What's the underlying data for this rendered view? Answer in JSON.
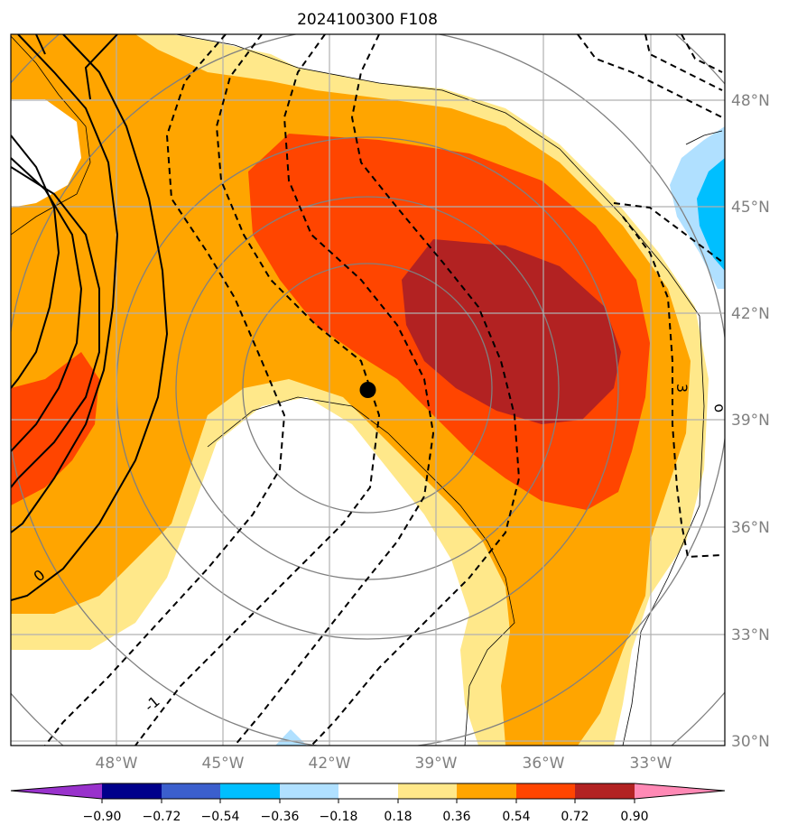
{
  "title": "2024100300 F108",
  "map": {
    "lon_range": [
      -51,
      -31
    ],
    "lat_range": [
      29.8,
      49.8
    ],
    "lon_ticks": [
      "48°W",
      "45°W",
      "42°W",
      "39°W",
      "36°W",
      "33°W"
    ],
    "lat_ticks": [
      "48°N",
      "45°N",
      "42°N",
      "39°N",
      "36°N",
      "33°N",
      "30°N"
    ],
    "grid": true,
    "storm_center_marker": {
      "lon": -41.0,
      "lat": 39.8
    }
  },
  "contour_labels": [
    {
      "text": "0",
      "style": "solid"
    },
    {
      "text": "-1",
      "style": "dashed"
    },
    {
      "text": "3",
      "style": "dashed"
    },
    {
      "text": "o",
      "style": "dashed"
    }
  ],
  "colorbar": {
    "tick_labels": [
      "−0.90",
      "−0.72",
      "−0.54",
      "−0.36",
      "−0.18",
      "0.18",
      "0.36",
      "0.54",
      "0.72",
      "0.90"
    ],
    "colors": [
      "#9932cc",
      "#00008b",
      "#3b5fcd",
      "#00bfff",
      "#b0e0ff",
      "#ffffff",
      "#ffe88a",
      "#ffa500",
      "#ff4500",
      "#b22222",
      "#ff89b5"
    ]
  }
}
